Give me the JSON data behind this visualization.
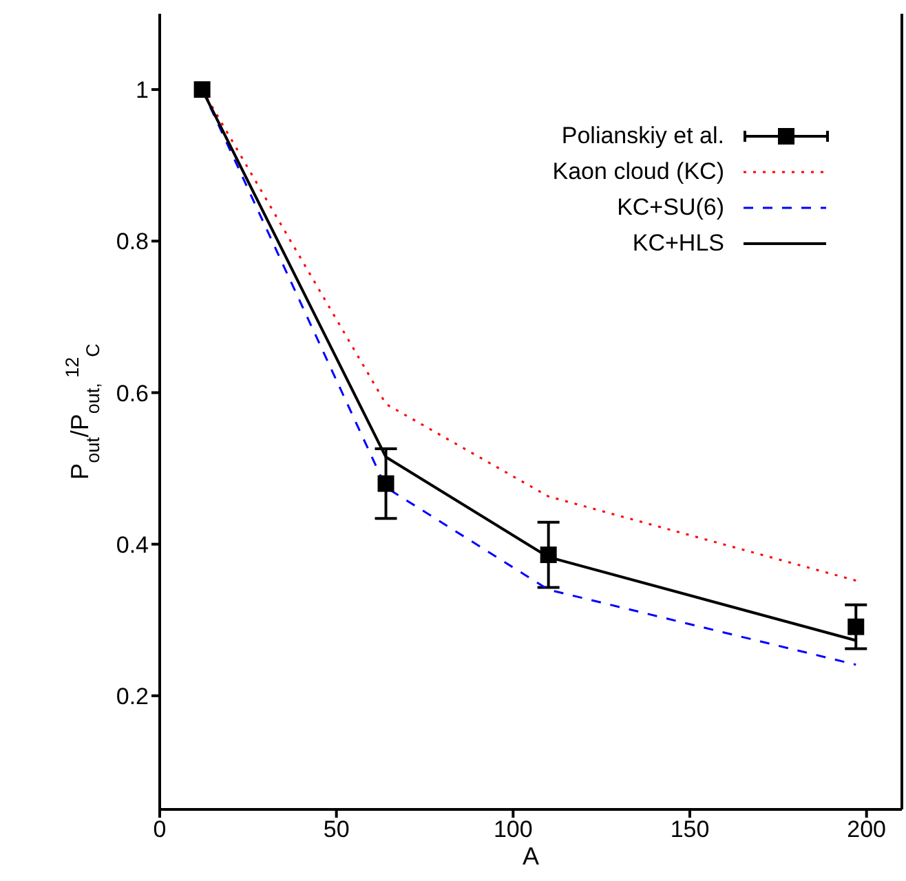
{
  "chart_data": {
    "type": "line",
    "xlabel": "A",
    "ylabel": "P$_{out}$/P$_{out, }$$^{12}$$_{C}$",
    "x": [
      12,
      64,
      110,
      197
    ],
    "series": [
      {
        "name": "Polianskiy et al.",
        "type": "scatter",
        "color": "#000000",
        "marker": "square",
        "values": [
          1.0,
          0.48,
          0.386,
          0.291
        ],
        "errors": [
          null,
          0.046,
          0.043,
          0.029
        ]
      },
      {
        "name": "Kaon cloud (KC)",
        "color": "#ff0000",
        "line_style": "dotted",
        "values": [
          1.0,
          0.585,
          0.463,
          0.352
        ]
      },
      {
        "name": "KC+SU(6)",
        "color": "#0000ff",
        "line_style": "dashed",
        "values": [
          1.0,
          0.475,
          0.34,
          0.241
        ]
      },
      {
        "name": "KC+HLS",
        "color": "#000000",
        "line_style": "solid",
        "values": [
          1.0,
          0.515,
          0.383,
          0.273
        ]
      }
    ],
    "xlim": [
      0,
      210
    ],
    "xticks": [
      0,
      50,
      100,
      150,
      200
    ],
    "ylim": [
      0.05,
      1.1
    ],
    "yticks": [
      0.2,
      0.4,
      0.6,
      0.8,
      1
    ],
    "grid": false,
    "legend": "top right"
  }
}
